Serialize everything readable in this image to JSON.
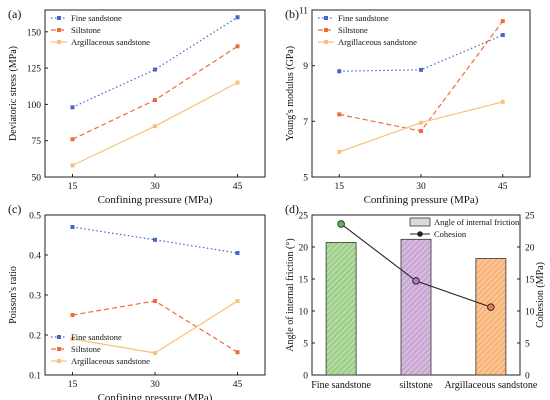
{
  "chart_data": [
    {
      "panel_label": "(a)",
      "type": "line",
      "categories": [
        "15",
        "30",
        "45"
      ],
      "xlabel": "Confining pressure (MPa)",
      "ylabel": "Deviatoric stress (MPa)",
      "ylim": [
        50,
        165
      ],
      "yticks": [
        50,
        75,
        100,
        125,
        150
      ],
      "yticklabels": [
        "50",
        "75",
        "100",
        "125",
        "150"
      ],
      "legend_position": "top-left",
      "series": [
        {
          "name": "Fine sandstone",
          "values": [
            98,
            124,
            160
          ],
          "color": "#4a64c8",
          "dash": "dot",
          "marker": "square"
        },
        {
          "name": "Siltstone",
          "values": [
            76,
            103,
            140
          ],
          "color": "#f06a3c",
          "dash": "dash",
          "marker": "square"
        },
        {
          "name": "Argillaceous sandstone",
          "values": [
            58,
            85,
            115
          ],
          "color": "#f8c07a",
          "dash": "solid",
          "marker": "square"
        }
      ]
    },
    {
      "panel_label": "(b)",
      "type": "line",
      "categories": [
        "15",
        "30",
        "45"
      ],
      "xlabel": "Confining pressure (MPa)",
      "ylabel": "Young's modulus (GPa)",
      "ylim": [
        5,
        11
      ],
      "yticks": [
        5,
        7,
        9,
        11
      ],
      "yticklabels": [
        "5",
        "7",
        "9",
        "11"
      ],
      "legend_position": "top-left",
      "series": [
        {
          "name": "Fine sandstone",
          "values": [
            8.8,
            8.85,
            10.1
          ],
          "color": "#4a64c8",
          "dash": "dot",
          "marker": "square"
        },
        {
          "name": "Siltstone",
          "values": [
            7.25,
            6.65,
            10.6
          ],
          "color": "#f06a3c",
          "dash": "dash",
          "marker": "square"
        },
        {
          "name": "Argillaceous sandstone",
          "values": [
            5.9,
            6.95,
            7.7
          ],
          "color": "#f8c07a",
          "dash": "solid",
          "marker": "square"
        }
      ]
    },
    {
      "panel_label": "(c)",
      "type": "line",
      "categories": [
        "15",
        "30",
        "45"
      ],
      "xlabel": "Confining pressure (MPa)",
      "ylabel": "Poisson's ratio",
      "ylim": [
        0.1,
        0.5
      ],
      "yticks": [
        0.1,
        0.2,
        0.3,
        0.4,
        0.5
      ],
      "yticklabels": [
        "0.1",
        "0.2",
        "0.3",
        "0.4",
        "0.5"
      ],
      "legend_position": "bottom-left",
      "series": [
        {
          "name": "Fine sandstone",
          "values": [
            0.47,
            0.438,
            0.405
          ],
          "color": "#4a64c8",
          "dash": "dot",
          "marker": "square"
        },
        {
          "name": "Siltstone",
          "values": [
            0.25,
            0.285,
            0.157
          ],
          "color": "#f06a3c",
          "dash": "dash",
          "marker": "square"
        },
        {
          "name": "Argillaceous sandstone",
          "values": [
            0.19,
            0.155,
            0.285
          ],
          "color": "#f8c07a",
          "dash": "solid",
          "marker": "square"
        }
      ]
    },
    {
      "panel_label": "(d)",
      "type": "bar",
      "categories": [
        "Fine sandstone",
        "siltstone",
        "Argillaceous sandstone"
      ],
      "ylabel": "Angle of internal friction (°)",
      "ylabel_right": "Cohesion (MPa)",
      "ylim": [
        0,
        25
      ],
      "yticks": [
        0,
        5,
        10,
        15,
        20,
        25
      ],
      "yticklabels": [
        "0",
        "5",
        "10",
        "15",
        "20",
        "25"
      ],
      "ylim_right": [
        0,
        25
      ],
      "yticks_right": [
        0,
        5,
        10,
        15,
        20,
        25
      ],
      "yticklabels_right": [
        "0",
        "5",
        "10",
        "15",
        "20",
        "25"
      ],
      "legend_position": "top-right",
      "bar_series": {
        "name": "Angle of internal friction",
        "values": [
          20.7,
          21.2,
          18.2
        ],
        "colors": [
          "#9fd08a",
          "#c9a8d4",
          "#f9b47a"
        ]
      },
      "line_series": {
        "name": "Cohesion",
        "values": [
          23.6,
          14.7,
          10.6
        ],
        "marker_colors": [
          "#5cb85c",
          "#b07bb8",
          "#ef7a5a"
        ]
      }
    }
  ]
}
